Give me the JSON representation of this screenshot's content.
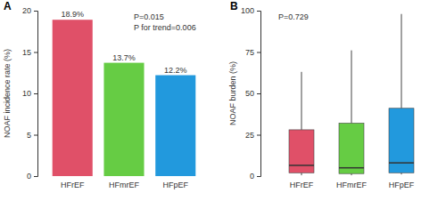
{
  "chart_data": [
    {
      "type": "bar",
      "title": "A",
      "y_label": "NOAF incidence rate (%)",
      "categories": [
        "HFrEF",
        "HFmrEF",
        "HFpEF"
      ],
      "values": [
        18.9,
        13.7,
        12.2
      ],
      "value_labels": [
        "18.9%",
        "13.7%",
        "12.2%"
      ],
      "data_labels": true,
      "colors": [
        "#e05068",
        "#66cc44",
        "#2299dd"
      ],
      "ylim": [
        0,
        20
      ],
      "yticks": [
        0,
        5,
        10,
        15,
        20
      ],
      "annotations": [
        "P=0.015",
        "P for trend=0.006"
      ],
      "grid": false
    },
    {
      "type": "box",
      "title": "B",
      "y_label": "NOAF burden (%)",
      "categories": [
        "HFrEF",
        "HFmrEF",
        "HFpEF"
      ],
      "whisker_low": [
        0.5,
        0.5,
        1
      ],
      "q1": [
        2,
        1.5,
        2
      ],
      "median": [
        6.5,
        5,
        8
      ],
      "q3": [
        28,
        32,
        41
      ],
      "whisker_high": [
        63,
        76,
        98
      ],
      "colors": [
        "#e05068",
        "#66cc44",
        "#2299dd"
      ],
      "ylim": [
        0,
        100
      ],
      "yticks": [
        0,
        25,
        50,
        75,
        100
      ],
      "annotations": [
        "P=0.729"
      ],
      "grid": false
    }
  ]
}
